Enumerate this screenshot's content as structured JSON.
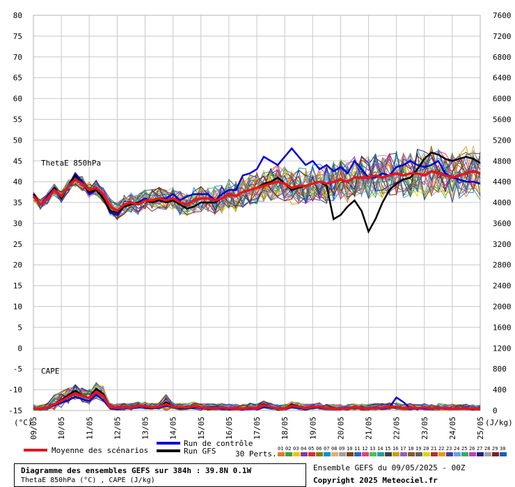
{
  "chart_data": {
    "type": "line",
    "title": "Diagramme des ensembles GEFS sur 384h : 39.8N 0.1W",
    "subtitle": "ThetaE 850hPa (°C) , CAPE (J/kg)",
    "panel_labels": {
      "thetae": "ThetaE 850hPa",
      "cape": "CAPE"
    },
    "left_axis": {
      "unit_label": "(°C)",
      "ticks": [
        80,
        75,
        70,
        65,
        60,
        55,
        50,
        45,
        40,
        35,
        30,
        25,
        20,
        15,
        10,
        5,
        0,
        -5,
        -10,
        -15
      ],
      "ylim": [
        -15,
        80
      ]
    },
    "right_axis": {
      "unit_label": "(J/kg)",
      "ticks": [
        7600,
        7200,
        6800,
        6400,
        6000,
        5600,
        5200,
        4800,
        4400,
        4000,
        3600,
        3200,
        2800,
        2400,
        2000,
        1600,
        1200,
        800,
        400,
        0
      ],
      "ylim": [
        0,
        7600
      ]
    },
    "x_ticks": [
      "09/05",
      "10/05",
      "11/05",
      "12/05",
      "13/05",
      "14/05",
      "15/05",
      "16/05",
      "17/05",
      "18/05",
      "19/05",
      "20/05",
      "21/05",
      "22/05",
      "23/05",
      "24/05",
      "25/05"
    ],
    "grid": true,
    "series": [
      {
        "name": "Moyenne des scénarios",
        "color": "#e8141c",
        "thetae": [
          36.5,
          34.5,
          36,
          38,
          36.5,
          39,
          40.5,
          39.5,
          38,
          38.5,
          37,
          34,
          33,
          34.5,
          35,
          34.5,
          35.5,
          35.5,
          36,
          35.5,
          36,
          35,
          34.5,
          35.5,
          36,
          36,
          35.5,
          36,
          37,
          36.5,
          37.5,
          38,
          38.5,
          39,
          39.5,
          40,
          39.5,
          38.5,
          39,
          39,
          39.5,
          40,
          39.5,
          40,
          40.5,
          40,
          41,
          41,
          41,
          41.5,
          41,
          41.5,
          42,
          41.5,
          42,
          42,
          41.5,
          42.5,
          42,
          41.5,
          41,
          41.5,
          42,
          42.5,
          42
        ],
        "cape": [
          40,
          25,
          60,
          120,
          180,
          260,
          330,
          280,
          230,
          360,
          280,
          60,
          50,
          55,
          60,
          90,
          80,
          60,
          70,
          120,
          70,
          60,
          55,
          80,
          55,
          45,
          40,
          60,
          40,
          45,
          35,
          60,
          40,
          100,
          70,
          35,
          40,
          90,
          70,
          40,
          70,
          70,
          40,
          35,
          40,
          35,
          60,
          40,
          35,
          50,
          50,
          70,
          70,
          40,
          55,
          40,
          60,
          40,
          50,
          40,
          40,
          35,
          40,
          35,
          30
        ]
      },
      {
        "name": "Run de contrôle",
        "color": "#0000d8",
        "thetae": [
          37,
          34.5,
          36.5,
          38.5,
          36,
          39,
          42,
          40,
          37,
          38,
          36.5,
          32.5,
          32,
          34,
          34.5,
          35,
          36,
          35,
          36,
          36,
          37,
          35.5,
          36.5,
          37,
          37,
          37,
          35.5,
          37,
          38,
          38,
          41.5,
          42,
          43,
          46,
          45,
          44,
          46,
          48,
          46,
          44,
          45,
          43,
          44,
          42.5,
          43.5,
          42,
          45,
          43,
          41,
          41,
          42,
          41.5,
          43.5,
          44,
          45,
          44,
          43.5,
          44,
          45,
          42,
          41,
          40.5,
          40,
          40,
          39.5
        ],
        "cape": [
          30,
          20,
          50,
          100,
          150,
          200,
          260,
          220,
          180,
          300,
          200,
          40,
          30,
          40,
          50,
          70,
          60,
          40,
          50,
          90,
          60,
          40,
          40,
          60,
          40,
          30,
          30,
          40,
          30,
          30,
          30,
          40,
          30,
          70,
          50,
          30,
          30,
          70,
          50,
          30,
          50,
          50,
          30,
          30,
          30,
          30,
          50,
          30,
          30,
          40,
          30,
          60,
          250,
          160,
          40,
          30,
          40,
          30,
          40,
          30,
          30,
          30,
          30,
          30,
          25
        ]
      },
      {
        "name": "Run GFS",
        "color": "#000000",
        "thetae": [
          37,
          34.5,
          36,
          38.5,
          36,
          39,
          41.5,
          39.5,
          37.5,
          38,
          36,
          33,
          32.5,
          34,
          34.5,
          35,
          35.5,
          35,
          35.5,
          35,
          35.5,
          34.5,
          33.5,
          34,
          35,
          35,
          35,
          36,
          37,
          36.5,
          37.5,
          38,
          38.5,
          39.5,
          40,
          41,
          39.5,
          38,
          38.5,
          39,
          39.5,
          40,
          39,
          31,
          32,
          34,
          35.5,
          33,
          28,
          31,
          35,
          38,
          39.5,
          40.5,
          41,
          43,
          45.5,
          47,
          46.5,
          45.5,
          45,
          45.5,
          46,
          45.5,
          44.5
        ],
        "cape": [
          40,
          20,
          60,
          120,
          200,
          300,
          380,
          290,
          240,
          420,
          320,
          60,
          40,
          50,
          60,
          100,
          70,
          50,
          60,
          160,
          70,
          40,
          40,
          70,
          50,
          40,
          40,
          60,
          40,
          40,
          40,
          60,
          40,
          120,
          70,
          40,
          40,
          110,
          80,
          40,
          80,
          70,
          40,
          40,
          40,
          40,
          60,
          40,
          40,
          60,
          50,
          60,
          60,
          40,
          60,
          40,
          70,
          40,
          50,
          40,
          40,
          40,
          40,
          30,
          30
        ]
      }
    ],
    "perturbation_colors": [
      "#e07b24",
      "#3ca040",
      "#f2c200",
      "#7e3ca8",
      "#d2342e",
      "#808000",
      "#0090d8",
      "#e0b070",
      "#a0a0a0",
      "#804000",
      "#3060c8",
      "#e04080",
      "#50c050",
      "#20a0a0",
      "#404040",
      "#c8a000",
      "#9060c0",
      "#8b5a2b",
      "#606060",
      "#d8d800",
      "#b03030",
      "#e0a000",
      "#4040a0",
      "#70a0e0",
      "#30b060",
      "#c040c0",
      "#202080",
      "#a0a0a0",
      "#802020",
      "#1060c0"
    ],
    "ensemble_members": 30
  },
  "legend": {
    "mean_label": "Moyenne des scénarios",
    "control_label": "Run de contrôle",
    "gfs_label": "Run GFS",
    "perts_label": "30 Perts.",
    "pert_numbers": [
      "01",
      "02",
      "03",
      "04",
      "05",
      "06",
      "07",
      "08",
      "09",
      "10",
      "11",
      "12",
      "13",
      "14",
      "15",
      "16",
      "17",
      "18",
      "19",
      "20",
      "21",
      "22",
      "23",
      "24",
      "25",
      "26",
      "27",
      "28",
      "29",
      "30"
    ]
  },
  "footer": {
    "title": "Diagramme des ensembles GEFS sur 384h : 39.8N 0.1W",
    "subtitle": "ThetaE 850hPa (°C) , CAPE (J/kg)",
    "run_info": "Ensemble GEFS du 09/05/2025 - 00Z",
    "copyright": "Copyright 2025 Meteociel.fr"
  }
}
